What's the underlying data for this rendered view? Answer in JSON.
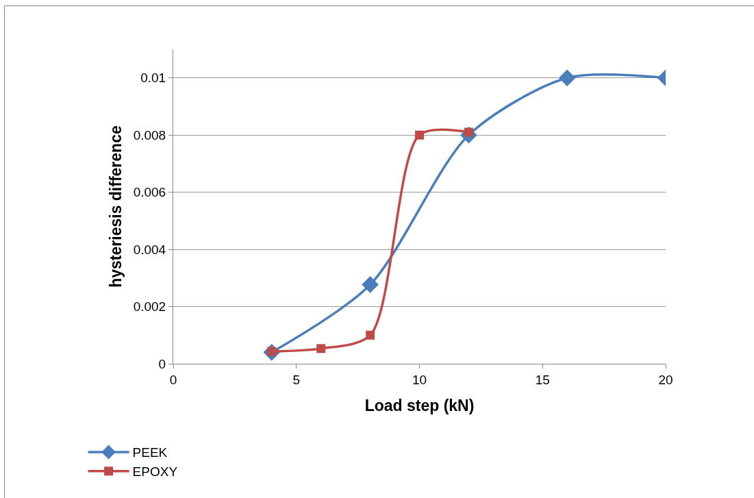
{
  "chart_data": {
    "type": "line",
    "xlabel": "Load step (kN)",
    "ylabel": "hysteriesis difference",
    "xlim": [
      0,
      20
    ],
    "xticks": [
      0,
      5,
      10,
      15,
      20
    ],
    "ylim": [
      0,
      0.011
    ],
    "yticks": [
      0,
      0.002,
      0.004,
      0.006,
      0.008,
      0.01
    ],
    "grid": "y",
    "legend": "bottom left",
    "line_style": "solid",
    "series": [
      {
        "name": "PEEK",
        "color": "#4a7ebb",
        "marker": "diamond",
        "x": [
          4,
          8,
          12,
          16,
          20
        ],
        "values": [
          0.0004,
          0.00277,
          0.008,
          0.01,
          0.01
        ]
      },
      {
        "name": "EPOXY",
        "color": "#be4b48",
        "marker": "square",
        "x": [
          4,
          6,
          8,
          10,
          12
        ],
        "values": [
          0.00043,
          0.00053,
          0.001,
          0.008,
          0.0081
        ]
      }
    ]
  }
}
